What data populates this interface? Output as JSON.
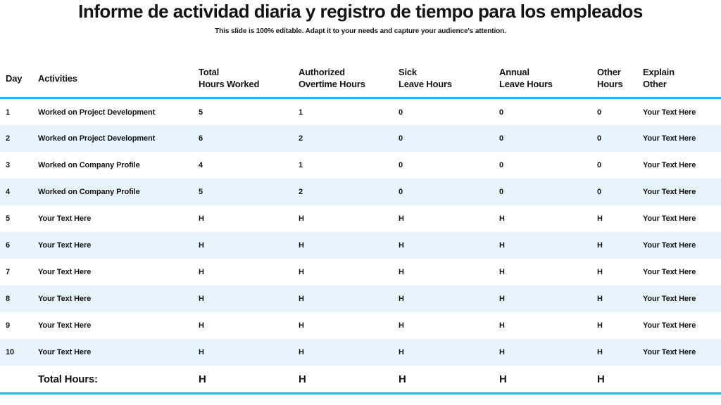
{
  "title": "Informe de actividad diaria y registro de tiempo para los empleados",
  "subtitle": "This slide is 100% editable. Adapt it to your needs and capture your audience's attention.",
  "colors": {
    "accent": "#2fb3e8",
    "stripe": "#e8f4fb",
    "text": "#141414"
  },
  "table": {
    "columns": [
      {
        "id": "day",
        "line1": "Day",
        "line2": ""
      },
      {
        "id": "activities",
        "line1": "Activities",
        "line2": ""
      },
      {
        "id": "total_hours",
        "line1": "Total",
        "line2": "Hours Worked"
      },
      {
        "id": "overtime",
        "line1": "Authorized",
        "line2": "Overtime Hours"
      },
      {
        "id": "sick",
        "line1": "Sick",
        "line2": "Leave Hours"
      },
      {
        "id": "annual",
        "line1": "Annual",
        "line2": "Leave Hours"
      },
      {
        "id": "other",
        "line1": "Other",
        "line2": "Hours"
      },
      {
        "id": "explain",
        "line1": "Explain",
        "line2": "Other"
      }
    ],
    "rows": [
      {
        "day": "1",
        "activities": "Worked on Project Development",
        "total_hours": "5",
        "overtime": "1",
        "sick": "0",
        "annual": "0",
        "other": "0",
        "explain": "Your Text Here"
      },
      {
        "day": "2",
        "activities": "Worked on Project Development",
        "total_hours": "6",
        "overtime": "2",
        "sick": "0",
        "annual": "0",
        "other": "0",
        "explain": "Your Text Here"
      },
      {
        "day": "3",
        "activities": "Worked on Company Profile",
        "total_hours": "4",
        "overtime": "1",
        "sick": "0",
        "annual": "0",
        "other": "0",
        "explain": "Your Text Here"
      },
      {
        "day": "4",
        "activities": "Worked on Company Profile",
        "total_hours": "5",
        "overtime": "2",
        "sick": "0",
        "annual": "0",
        "other": "0",
        "explain": "Your Text Here"
      },
      {
        "day": "5",
        "activities": "Your Text Here",
        "total_hours": "H",
        "overtime": "H",
        "sick": "H",
        "annual": "H",
        "other": "H",
        "explain": "Your Text Here"
      },
      {
        "day": "6",
        "activities": "Your Text Here",
        "total_hours": "H",
        "overtime": "H",
        "sick": "H",
        "annual": "H",
        "other": "H",
        "explain": "Your Text Here"
      },
      {
        "day": "7",
        "activities": "Your Text Here",
        "total_hours": "H",
        "overtime": "H",
        "sick": "H",
        "annual": "H",
        "other": "H",
        "explain": "Your Text Here"
      },
      {
        "day": "8",
        "activities": "Your Text Here",
        "total_hours": "H",
        "overtime": "H",
        "sick": "H",
        "annual": "H",
        "other": "H",
        "explain": "Your Text Here"
      },
      {
        "day": "9",
        "activities": "Your Text Here",
        "total_hours": "H",
        "overtime": "H",
        "sick": "H",
        "annual": "H",
        "other": "H",
        "explain": "Your Text Here"
      },
      {
        "day": "10",
        "activities": "Your Text Here",
        "total_hours": "H",
        "overtime": "H",
        "sick": "H",
        "annual": "H",
        "other": "H",
        "explain": "Your Text Here"
      }
    ],
    "total_row": {
      "label": "Total Hours:",
      "total_hours": "H",
      "overtime": "H",
      "sick": "H",
      "annual": "H",
      "other": "H",
      "explain": ""
    }
  }
}
